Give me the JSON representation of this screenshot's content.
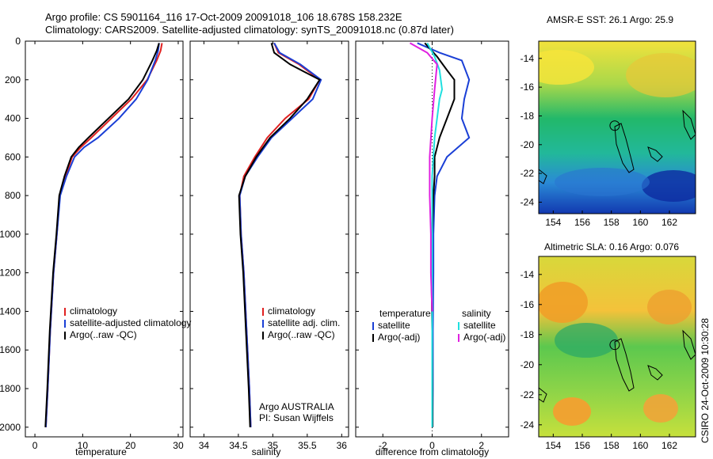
{
  "header": {
    "line1": "Argo profile: CS 5901164_116 17-Oct-2009 20091018_106 18.678S 158.232E",
    "line2": "Climatology: CARS2009. Satellite-adjusted climatology: synTS_20091018.nc (0.87d later)"
  },
  "map_titles": {
    "sst": "AMSR-E SST: 26.1 Argo: 25.9",
    "sla": "Altimetric SLA: 0.16 Argo: 0.076"
  },
  "stamp": "CSIRO 24-Oct-2009 10:30:28",
  "colors": {
    "clim": "#e02020",
    "sat": "#1a3fd6",
    "argo": "#000000",
    "sat_sal": "#20e0e0",
    "argo_sal": "#e020e0"
  },
  "chart_data": [
    {
      "type": "line",
      "xlabel": "temperature",
      "xlim": [
        -2,
        31
      ],
      "ylim": [
        2050,
        0
      ],
      "xticks": [
        0,
        10,
        20,
        30
      ],
      "yticks": [
        0,
        200,
        400,
        600,
        800,
        1000,
        1200,
        1400,
        1600,
        1800,
        2000
      ],
      "legend": [
        "climatology",
        "satellite-adjusted climatology",
        "Argo(..raw -QC)"
      ],
      "series": [
        {
          "name": "climatology",
          "color": "clim",
          "x": [
            26.6,
            26.3,
            25.5,
            23.5,
            20.2,
            16.0,
            11.8,
            9.6,
            7.8,
            6.4,
            5.2,
            4.6,
            3.9,
            3.2,
            2.7,
            2.3
          ],
          "y": [
            10,
            50,
            100,
            200,
            300,
            400,
            500,
            550,
            600,
            700,
            800,
            1000,
            1200,
            1500,
            1800,
            2000
          ]
        },
        {
          "name": "satellite-adjusted climatology",
          "color": "sat",
          "x": [
            26.0,
            25.8,
            25.2,
            23.6,
            21.2,
            17.6,
            13.2,
            10.3,
            8.3,
            6.6,
            5.3,
            4.6,
            3.9,
            3.2,
            2.7,
            2.3
          ],
          "y": [
            10,
            50,
            100,
            200,
            300,
            400,
            500,
            550,
            600,
            700,
            800,
            1000,
            1200,
            1500,
            1800,
            2000
          ]
        },
        {
          "name": "Argo(..raw -QC)",
          "color": "argo",
          "x": [
            26.0,
            25.5,
            24.6,
            22.6,
            19.6,
            15.4,
            11.2,
            9.2,
            7.6,
            6.2,
            5.1,
            4.5,
            3.8,
            3.1,
            2.6,
            2.2
          ],
          "y": [
            10,
            50,
            100,
            200,
            300,
            400,
            500,
            550,
            600,
            700,
            800,
            1000,
            1200,
            1500,
            1800,
            2000
          ]
        }
      ]
    },
    {
      "type": "line",
      "xlabel": "salinity",
      "xlim": [
        33.8,
        36.1
      ],
      "ylim": [
        2050,
        0
      ],
      "xticks": [
        34,
        34.5,
        35,
        35.5,
        36
      ],
      "legend": [
        "climatology",
        "satellite adj. clim.",
        "Argo(..raw -QC)"
      ],
      "annotation": [
        "Argo AUSTRALIA",
        "PI: Susan Wijffels"
      ],
      "series": [
        {
          "name": "climatology",
          "color": "clim",
          "x": [
            35.02,
            35.08,
            35.38,
            35.68,
            35.52,
            35.18,
            34.92,
            34.74,
            34.58,
            34.52,
            34.54,
            34.58,
            34.62,
            34.66,
            34.68
          ],
          "y": [
            10,
            60,
            120,
            200,
            300,
            400,
            500,
            600,
            700,
            800,
            1000,
            1200,
            1500,
            1800,
            2000
          ]
        },
        {
          "name": "satellite adj. clim.",
          "color": "sat",
          "x": [
            35.02,
            35.1,
            35.4,
            35.7,
            35.58,
            35.28,
            34.98,
            34.78,
            34.6,
            34.52,
            34.54,
            34.58,
            34.62,
            34.66,
            34.68
          ],
          "y": [
            10,
            60,
            120,
            200,
            300,
            400,
            500,
            600,
            700,
            800,
            1000,
            1200,
            1500,
            1800,
            2000
          ]
        },
        {
          "name": "Argo(..raw -QC)",
          "color": "argo",
          "x": [
            34.98,
            35.02,
            35.25,
            35.68,
            35.5,
            35.25,
            34.96,
            34.76,
            34.6,
            34.51,
            34.53,
            34.57,
            34.61,
            34.65,
            34.67
          ],
          "y": [
            10,
            60,
            120,
            200,
            300,
            400,
            500,
            600,
            700,
            800,
            1000,
            1200,
            1500,
            1800,
            2000
          ]
        }
      ]
    },
    {
      "type": "line",
      "xlabel": "difference from climatology",
      "xlim": [
        -3.1,
        3.1
      ],
      "ylim": [
        2050,
        0
      ],
      "xticks": [
        -2,
        0,
        2
      ],
      "legend_left": [
        "temperature",
        "satellite",
        "Argo(-adj)"
      ],
      "legend_right": [
        "salinity",
        "satellite",
        "Argo(-adj)"
      ],
      "series": [
        {
          "name": "temperature satellite",
          "color": "sat",
          "x": [
            -0.6,
            0.3,
            1.2,
            1.5,
            1.3,
            1.2,
            1.5,
            0.6,
            0.2,
            0.1,
            0.05,
            0.05,
            0.03,
            0.03,
            0.02
          ],
          "y": [
            10,
            60,
            100,
            200,
            300,
            400,
            500,
            600,
            700,
            800,
            1000,
            1200,
            1500,
            1800,
            2000
          ]
        },
        {
          "name": "temperature Argo(-adj)",
          "color": "argo",
          "x": [
            -0.3,
            0.2,
            0.6,
            0.9,
            0.9,
            0.6,
            0.3,
            0.1,
            0.1,
            0.05,
            0.0,
            -0.03,
            0.0,
            0.02
          ],
          "y": [
            10,
            80,
            150,
            200,
            300,
            400,
            500,
            600,
            700,
            800,
            1000,
            1200,
            1500,
            2000
          ]
        },
        {
          "name": "salinity satellite",
          "color": "sat_sal",
          "x": [
            -0.2,
            0.1,
            0.3,
            0.4,
            0.3,
            0.2,
            0.1,
            0.0,
            0.0,
            0.0,
            0.0
          ],
          "y": [
            10,
            80,
            150,
            250,
            300,
            400,
            500,
            700,
            1000,
            1500,
            2000
          ]
        },
        {
          "name": "salinity Argo(-adj)",
          "color": "argo_sal",
          "x": [
            -0.9,
            -0.2,
            0.2,
            0.1,
            0.0,
            -0.1,
            -0.1,
            -0.05,
            -0.05,
            0.0
          ],
          "y": [
            10,
            60,
            120,
            250,
            400,
            600,
            800,
            1000,
            1200,
            1400
          ]
        }
      ]
    }
  ],
  "maps": {
    "x_ticks": [
      154,
      156,
      158,
      160,
      162
    ],
    "y_ticks": [
      -14,
      -16,
      -18,
      -20,
      -22,
      -24
    ],
    "xlim": [
      153,
      163.8
    ],
    "ylim": [
      -12.8,
      -24.8
    ],
    "argo_position": {
      "lon": 158.232,
      "lat": -18.678
    }
  }
}
